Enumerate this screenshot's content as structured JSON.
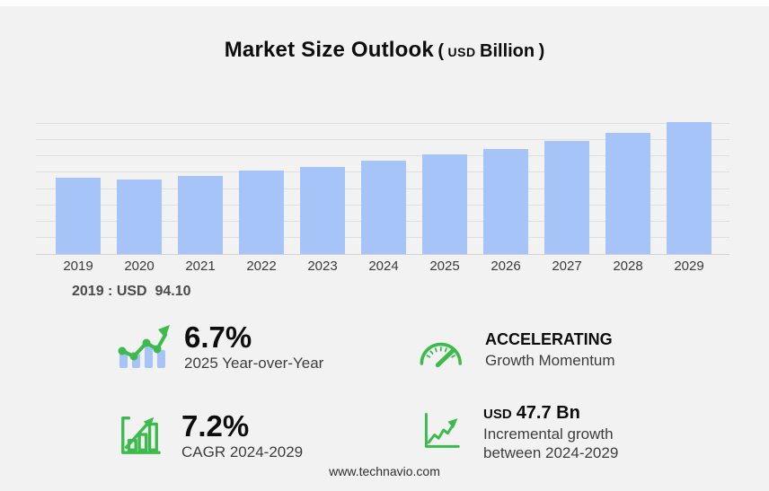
{
  "title": {
    "main": "Market Size Outlook",
    "open_paren": "(",
    "currency": "USD",
    "unit": "Billion",
    "close_paren": ")"
  },
  "chart_data": {
    "type": "bar",
    "title": "Market Size Outlook (USD Billion)",
    "categories": [
      "2019",
      "2020",
      "2021",
      "2022",
      "2023",
      "2024",
      "2025",
      "2026",
      "2027",
      "2028",
      "2029"
    ],
    "values": [
      94.1,
      91.9,
      96.4,
      103.0,
      106.7,
      114.7,
      122.4,
      129.6,
      139.1,
      149.4,
      162.4
    ],
    "unit": "USD Billion",
    "xlabel": "",
    "ylabel": "",
    "ylim": [
      0,
      171
    ],
    "grid": true,
    "grid_step": 20,
    "legend": false,
    "bar_color": "#a7c4f8"
  },
  "annotation": {
    "label": "2019 : USD  94.10"
  },
  "stats": [
    {
      "icon": "bars-trend-up-icon",
      "value": "6.7%",
      "label": "2025 Year-over-Year"
    },
    {
      "icon": "gauge-icon",
      "title": "ACCELERATING",
      "label": "Growth Momentum"
    },
    {
      "icon": "bar-chart-growth-icon",
      "value": "7.2%",
      "label": "CAGR 2024-2029"
    },
    {
      "icon": "line-chart-growth-icon",
      "currency": "USD",
      "value": "47.7 Bn",
      "label": "Incremental growth between 2024-2029"
    }
  ],
  "footer": {
    "url": "www.technavio.com"
  },
  "colors": {
    "bar_fill": "#a7c4f8",
    "accent_green": "#3cbb4c",
    "background": "#f2f2f3",
    "gridline": "#dfdfe2"
  }
}
